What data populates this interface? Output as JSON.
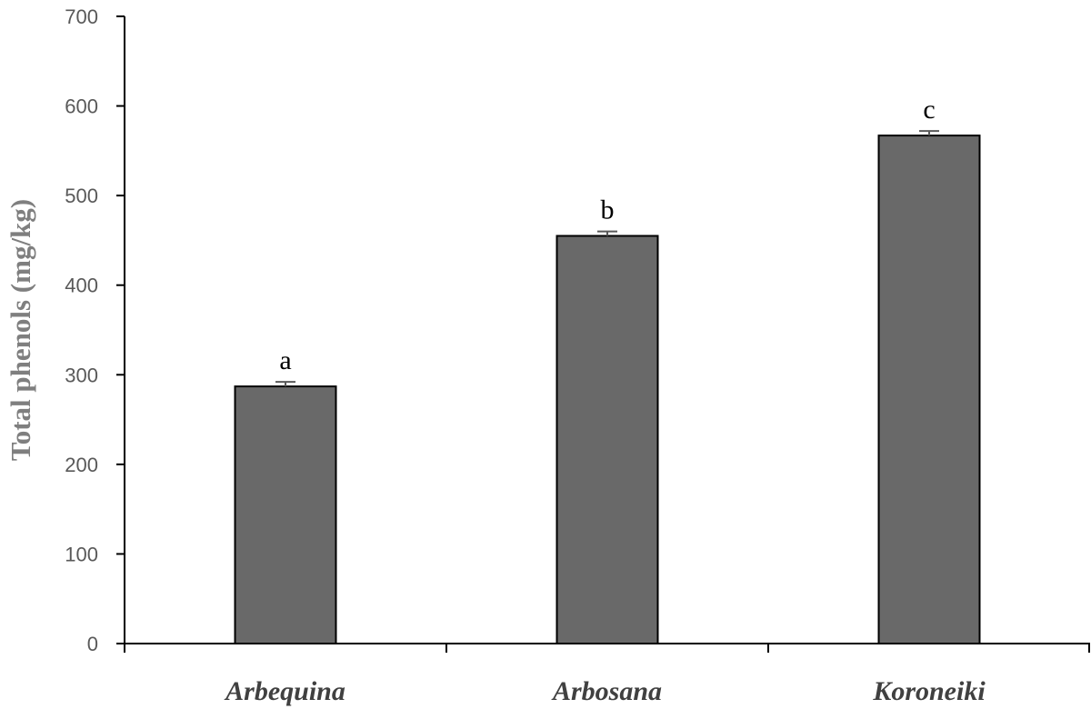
{
  "chart_data": {
    "type": "bar",
    "categories": [
      "Arbequina",
      "Arbosana",
      "Koroneiki"
    ],
    "values": [
      287,
      455,
      567
    ],
    "errors": [
      5,
      5,
      5
    ],
    "significance_labels": [
      "a",
      "b",
      "c"
    ],
    "ylabel": "Total phenols (mg/kg)",
    "xlabel": "",
    "ylim": [
      0,
      700
    ],
    "yticks": [
      0,
      100,
      200,
      300,
      400,
      500,
      600,
      700
    ],
    "grid": false,
    "bar_color": "#696969",
    "bar_edge_color": "#000000",
    "axis_color": "#000000"
  }
}
